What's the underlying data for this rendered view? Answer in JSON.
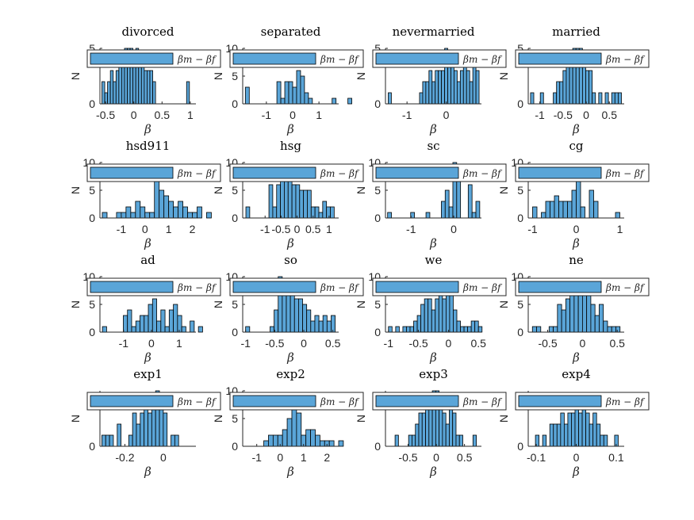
{
  "colors": {
    "bar_fill": "#5aa5d8",
    "bar_edge": "#000000",
    "axis": "#262626",
    "background": "#ffffff"
  },
  "chart_data": [
    {
      "type": "bar",
      "title": "divorced",
      "xlabel": "β",
      "ylabel": "N",
      "legend": "βm − βf",
      "xticks": [
        -0.5,
        0,
        0.5,
        1
      ],
      "yticks": [
        0,
        5
      ],
      "xlim": [
        -0.6,
        1.1
      ],
      "ylim": [
        0,
        5
      ],
      "bin_start": -0.565,
      "bin_width": 0.05,
      "values": [
        2,
        1,
        2,
        3,
        2,
        3,
        4,
        4,
        5,
        5,
        5,
        4,
        5,
        4,
        4,
        3,
        3,
        3,
        2,
        0,
        0,
        0,
        0,
        0,
        0,
        0,
        0,
        0,
        0,
        0,
        2
      ]
    },
    {
      "type": "bar",
      "title": "separated",
      "xlabel": "β",
      "ylabel": "N",
      "legend": "βm − βf",
      "xticks": [
        -1,
        0,
        1
      ],
      "yticks": [
        0,
        5,
        10
      ],
      "xlim": [
        -1.9,
        1.75
      ],
      "ylim": [
        0,
        10
      ],
      "bin_start": -1.8,
      "bin_width": 0.15,
      "values": [
        3,
        0,
        0,
        0,
        0,
        0,
        0,
        0,
        4,
        1,
        4,
        4,
        3,
        6,
        5,
        2,
        1,
        0,
        0,
        0,
        0,
        0,
        1,
        0,
        0,
        0,
        1
      ]
    },
    {
      "type": "bar",
      "title": "nevermarried",
      "xlabel": "β",
      "ylabel": "N",
      "legend": "βm − βf",
      "xticks": [
        -1,
        0
      ],
      "yticks": [
        0,
        5
      ],
      "xlim": [
        -1.55,
        0.9
      ],
      "ylim": [
        0,
        5
      ],
      "bin_start": -1.48,
      "bin_width": 0.08,
      "values": [
        1,
        0,
        0,
        0,
        0,
        0,
        0,
        0,
        0,
        0,
        1,
        2,
        2,
        3,
        2,
        3,
        3,
        3,
        5,
        4,
        4,
        3,
        2,
        3,
        4,
        3,
        2,
        4,
        3
      ]
    },
    {
      "type": "bar",
      "title": "married",
      "xlabel": "β",
      "ylabel": "N",
      "legend": "βm − βf",
      "xticks": [
        -1,
        -0.5,
        0,
        0.5
      ],
      "yticks": [
        0,
        5
      ],
      "xlim": [
        -1.25,
        0.82
      ],
      "ylim": [
        0,
        5
      ],
      "bin_start": -1.2,
      "bin_width": 0.07,
      "values": [
        1,
        0,
        0,
        1,
        0,
        0,
        0,
        1,
        2,
        2,
        3,
        4,
        4,
        5,
        5,
        5,
        4,
        3,
        3,
        1,
        0,
        1,
        0,
        1,
        0,
        1,
        1,
        1
      ]
    },
    {
      "type": "bar",
      "title": "hsd911",
      "xlabel": "β",
      "ylabel": "N",
      "legend": "βm − βf",
      "xticks": [
        -1,
        0,
        1,
        2
      ],
      "yticks": [
        0,
        5,
        10
      ],
      "xlim": [
        -1.9,
        2.15
      ],
      "ylim": [
        0,
        10
      ],
      "bin_start": -1.8,
      "bin_width": 0.2,
      "values": [
        1,
        0,
        0,
        1,
        1,
        2,
        1,
        3,
        2,
        1,
        1,
        9,
        5,
        4,
        3,
        2,
        3,
        2,
        1,
        1,
        2,
        0,
        1
      ]
    },
    {
      "type": "bar",
      "title": "hsg",
      "xlabel": "β",
      "ylabel": "N",
      "legend": "βm − βf",
      "xticks": [
        -1,
        -0.5,
        0,
        0.5,
        1
      ],
      "yticks": [
        0,
        5,
        10
      ],
      "xlim": [
        -1.7,
        1.3
      ],
      "ylim": [
        0,
        10
      ],
      "bin_start": -1.6,
      "bin_width": 0.12,
      "values": [
        2,
        0,
        0,
        0,
        0,
        0,
        6,
        2,
        6,
        9,
        8,
        9,
        6,
        6,
        5,
        5,
        5,
        2,
        2,
        1,
        3,
        2,
        2
      ]
    },
    {
      "type": "bar",
      "title": "sc",
      "xlabel": "β",
      "ylabel": "N",
      "legend": "βm − βf",
      "xticks": [
        -1,
        0
      ],
      "yticks": [
        0,
        5,
        10
      ],
      "xlim": [
        -1.6,
        0.65
      ],
      "ylim": [
        0,
        10
      ],
      "bin_start": -1.55,
      "bin_width": 0.09,
      "values": [
        1,
        0,
        0,
        0,
        0,
        0,
        1,
        0,
        0,
        0,
        1,
        0,
        0,
        0,
        3,
        5,
        2,
        10,
        7,
        0,
        0,
        6,
        1,
        3
      ]
    },
    {
      "type": "bar",
      "title": "cg",
      "xlabel": "β",
      "ylabel": "N",
      "legend": "βm − βf",
      "xticks": [
        -1,
        0,
        1
      ],
      "yticks": [
        0,
        5,
        10
      ],
      "xlim": [
        -1.1,
        1.1
      ],
      "ylim": [
        0,
        10
      ],
      "bin_start": -1.0,
      "bin_width": 0.1,
      "values": [
        2,
        0,
        1,
        3,
        3,
        4,
        3,
        3,
        3,
        5,
        7,
        2,
        0,
        5,
        3,
        0,
        0,
        0,
        0,
        1,
        0
      ]
    },
    {
      "type": "bar",
      "title": "ad",
      "xlabel": "β",
      "ylabel": "N",
      "legend": "βm − βf",
      "xticks": [
        -1,
        0,
        1
      ],
      "yticks": [
        0,
        5,
        10
      ],
      "xlim": [
        -1.85,
        1.6
      ],
      "ylim": [
        0,
        10
      ],
      "bin_start": -1.76,
      "bin_width": 0.15,
      "values": [
        1,
        0,
        0,
        0,
        0,
        3,
        4,
        1,
        2,
        3,
        3,
        5,
        6,
        2,
        4,
        1,
        4,
        5,
        3,
        1,
        0,
        2,
        0,
        1
      ]
    },
    {
      "type": "bar",
      "title": "so",
      "xlabel": "β",
      "ylabel": "N",
      "legend": "βm − βf",
      "xticks": [
        -1,
        -0.5,
        0,
        0.5
      ],
      "yticks": [
        0,
        5,
        10
      ],
      "xlim": [
        -1.05,
        0.6
      ],
      "ylim": [
        0,
        10
      ],
      "bin_start": -1.0,
      "bin_width": 0.07,
      "values": [
        1,
        0,
        0,
        0,
        0,
        0,
        1,
        4,
        10,
        9,
        9,
        8,
        6,
        6,
        5,
        4,
        2,
        3,
        2,
        3,
        2,
        3
      ]
    },
    {
      "type": "bar",
      "title": "we",
      "xlabel": "β",
      "ylabel": "N",
      "legend": "βm − βf",
      "xticks": [
        -1,
        -0.5,
        0,
        0.5
      ],
      "yticks": [
        0,
        5,
        10
      ],
      "xlim": [
        -1.05,
        0.55
      ],
      "ylim": [
        0,
        10
      ],
      "bin_start": -1.0,
      "bin_width": 0.06,
      "values": [
        1,
        0,
        1,
        0,
        1,
        1,
        1,
        2,
        3,
        5,
        6,
        6,
        4,
        6,
        9,
        6,
        8,
        7,
        4,
        2,
        1,
        1,
        1,
        2,
        2,
        1
      ]
    },
    {
      "type": "bar",
      "title": "ne",
      "xlabel": "β",
      "ylabel": "N",
      "legend": "βm − βf",
      "xticks": [
        -0.5,
        0,
        0.5
      ],
      "yticks": [
        0,
        5,
        10
      ],
      "xlim": [
        -0.78,
        0.6
      ],
      "ylim": [
        0,
        10
      ],
      "bin_start": -0.72,
      "bin_width": 0.06,
      "values": [
        1,
        1,
        0,
        0,
        1,
        1,
        5,
        4,
        6,
        7,
        9,
        9,
        9,
        8,
        5,
        3,
        5,
        2,
        1,
        1,
        1
      ]
    },
    {
      "type": "bar",
      "title": "exp1",
      "xlabel": "β",
      "ylabel": "N",
      "legend": "βm − βf",
      "xticks": [
        -0.2,
        0
      ],
      "yticks": [
        0
      ],
      "xlim": [
        -0.33,
        0.17
      ],
      "ylim": [
        0,
        5
      ],
      "bin_start": -0.32,
      "bin_width": 0.02,
      "values": [
        1,
        1,
        1,
        0,
        2,
        0,
        0,
        1,
        3,
        2,
        3,
        4,
        3,
        4,
        5,
        4,
        3,
        0,
        1,
        1
      ]
    },
    {
      "type": "bar",
      "title": "exp2",
      "xlabel": "β",
      "ylabel": "N",
      "legend": "βm − βf",
      "xticks": [
        -1,
        0,
        1,
        2
      ],
      "yticks": [
        0,
        5,
        10
      ],
      "xlim": [
        -1.6,
        2.5
      ],
      "ylim": [
        0,
        10
      ],
      "bin_start": -1.5,
      "bin_width": 0.2,
      "values": [
        0,
        0,
        0,
        0,
        1,
        2,
        2,
        2,
        3,
        5,
        9,
        6,
        2,
        3,
        3,
        2,
        1,
        1,
        1,
        0,
        1
      ]
    },
    {
      "type": "bar",
      "title": "exp3",
      "xlabel": "β",
      "ylabel": "N",
      "legend": "βm − βf",
      "xticks": [
        -0.5,
        0,
        0.5
      ],
      "yticks": [
        0
      ],
      "xlim": [
        -0.9,
        0.8
      ],
      "ylim": [
        0,
        5
      ],
      "bin_start": -0.85,
      "bin_width": 0.06,
      "values": [
        0,
        0,
        1,
        0,
        0,
        0,
        1,
        1,
        2,
        3,
        3,
        4,
        4,
        5,
        5,
        4,
        3,
        2,
        4,
        3,
        1,
        1,
        0,
        0,
        0,
        1
      ]
    },
    {
      "type": "bar",
      "title": "exp4",
      "xlabel": "β",
      "ylabel": "N",
      "legend": "βm − βf",
      "xticks": [
        -0.1,
        0,
        0.1
      ],
      "yticks": [
        0
      ],
      "xlim": [
        -0.12,
        0.12
      ],
      "ylim": [
        0,
        5
      ],
      "bin_start": -0.12,
      "bin_width": 0.009,
      "values": [
        0,
        0,
        1,
        0,
        1,
        0,
        2,
        2,
        2,
        3,
        2,
        3,
        3,
        4,
        3,
        4,
        3,
        2,
        3,
        2,
        1,
        1,
        0,
        0,
        1
      ]
    }
  ]
}
